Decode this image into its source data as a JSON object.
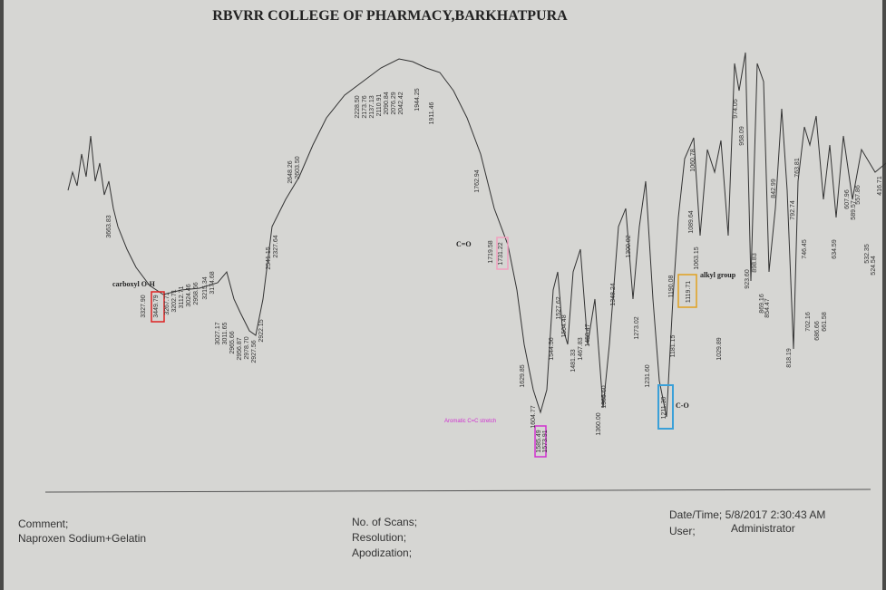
{
  "header": {
    "title": "RBVRR COLLEGE OF PHARMACY,BARKHATPURA"
  },
  "annotations": {
    "oh": "carboxyl O-H",
    "co_double": "C=O",
    "alkyl": "alkyl group",
    "co_single": "C-O",
    "aromatic": "Aromatic C=C stretch"
  },
  "peaks": [
    "3663.83",
    "3327.90",
    "3449.79",
    "3267.71",
    "3202.71",
    "3112.71",
    "3024.46",
    "2958.66",
    "3215.34",
    "3174.68",
    "3027.17",
    "3011.65",
    "2965.66",
    "2956.87",
    "2978.70",
    "2927.56",
    "2922.15",
    "2541.15",
    "2327.64",
    "2648.26",
    "2603.50",
    "2228.50",
    "2173.76",
    "2137.13",
    "2110.91",
    "2090.84",
    "2076.29",
    "2042.42",
    "1944.25",
    "1911.46",
    "1762.94",
    "1719.58",
    "1731.22",
    "1629.85",
    "1604.77",
    "1585.49",
    "1573.91",
    "1544.56",
    "1527.62",
    "1504.48",
    "1481.33",
    "1467.83",
    "1450.47",
    "1365.60",
    "1360.00",
    "1348.24",
    "1300.02",
    "1273.02",
    "1231.60",
    "1211.30",
    "1190.08",
    "1181.15",
    "1119.71",
    "1060.78",
    "1089.64",
    "1063.15",
    "1029.89",
    "974.05",
    "958.09",
    "923.60",
    "898.83",
    "869.16",
    "854.47",
    "842.99",
    "818.19",
    "792.74",
    "763.81",
    "746.45",
    "702.16",
    "686.66",
    "661.58",
    "634.59",
    "607.96",
    "589.57",
    "557.86",
    "532.35",
    "524.54",
    "416.71"
  ],
  "footer": {
    "comment_label": "Comment;",
    "comment": "Naproxen Sodium+Gelatin",
    "scans": "No. of Scans;",
    "resolution": "Resolution;",
    "apodization": "Apodization;",
    "datetime": "Date/Time; 5/8/2017 2:30:43 AM",
    "user_label": "User;",
    "user": "Administrator"
  }
}
